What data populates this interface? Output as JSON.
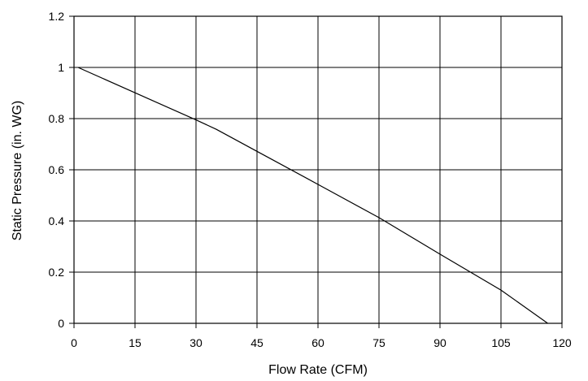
{
  "chart_data": {
    "type": "line",
    "title": "",
    "xlabel": "Flow Rate (CFM)",
    "ylabel": "Static Pressure (in. WG)",
    "xlim": [
      0,
      120
    ],
    "ylim": [
      0,
      1.2
    ],
    "xticks": [
      0,
      15,
      30,
      45,
      60,
      75,
      90,
      105,
      120
    ],
    "yticks": [
      0,
      0.2,
      0.4,
      0.6,
      0.8,
      1,
      1.2
    ],
    "xtick_labels": [
      "0",
      "15",
      "30",
      "45",
      "60",
      "75",
      "90",
      "105",
      "120"
    ],
    "ytick_labels": [
      "0",
      "0.2",
      "0.4",
      "0.6",
      "0.8",
      "1",
      "1.2"
    ],
    "grid": true,
    "legend": "none",
    "series": [
      {
        "x": [
          1,
          30,
          35,
          45,
          60,
          75,
          90,
          105,
          116.5
        ],
        "y": [
          1.0,
          0.795,
          0.758,
          0.672,
          0.543,
          0.413,
          0.27,
          0.13,
          0.0
        ],
        "color": "#000000"
      }
    ]
  }
}
